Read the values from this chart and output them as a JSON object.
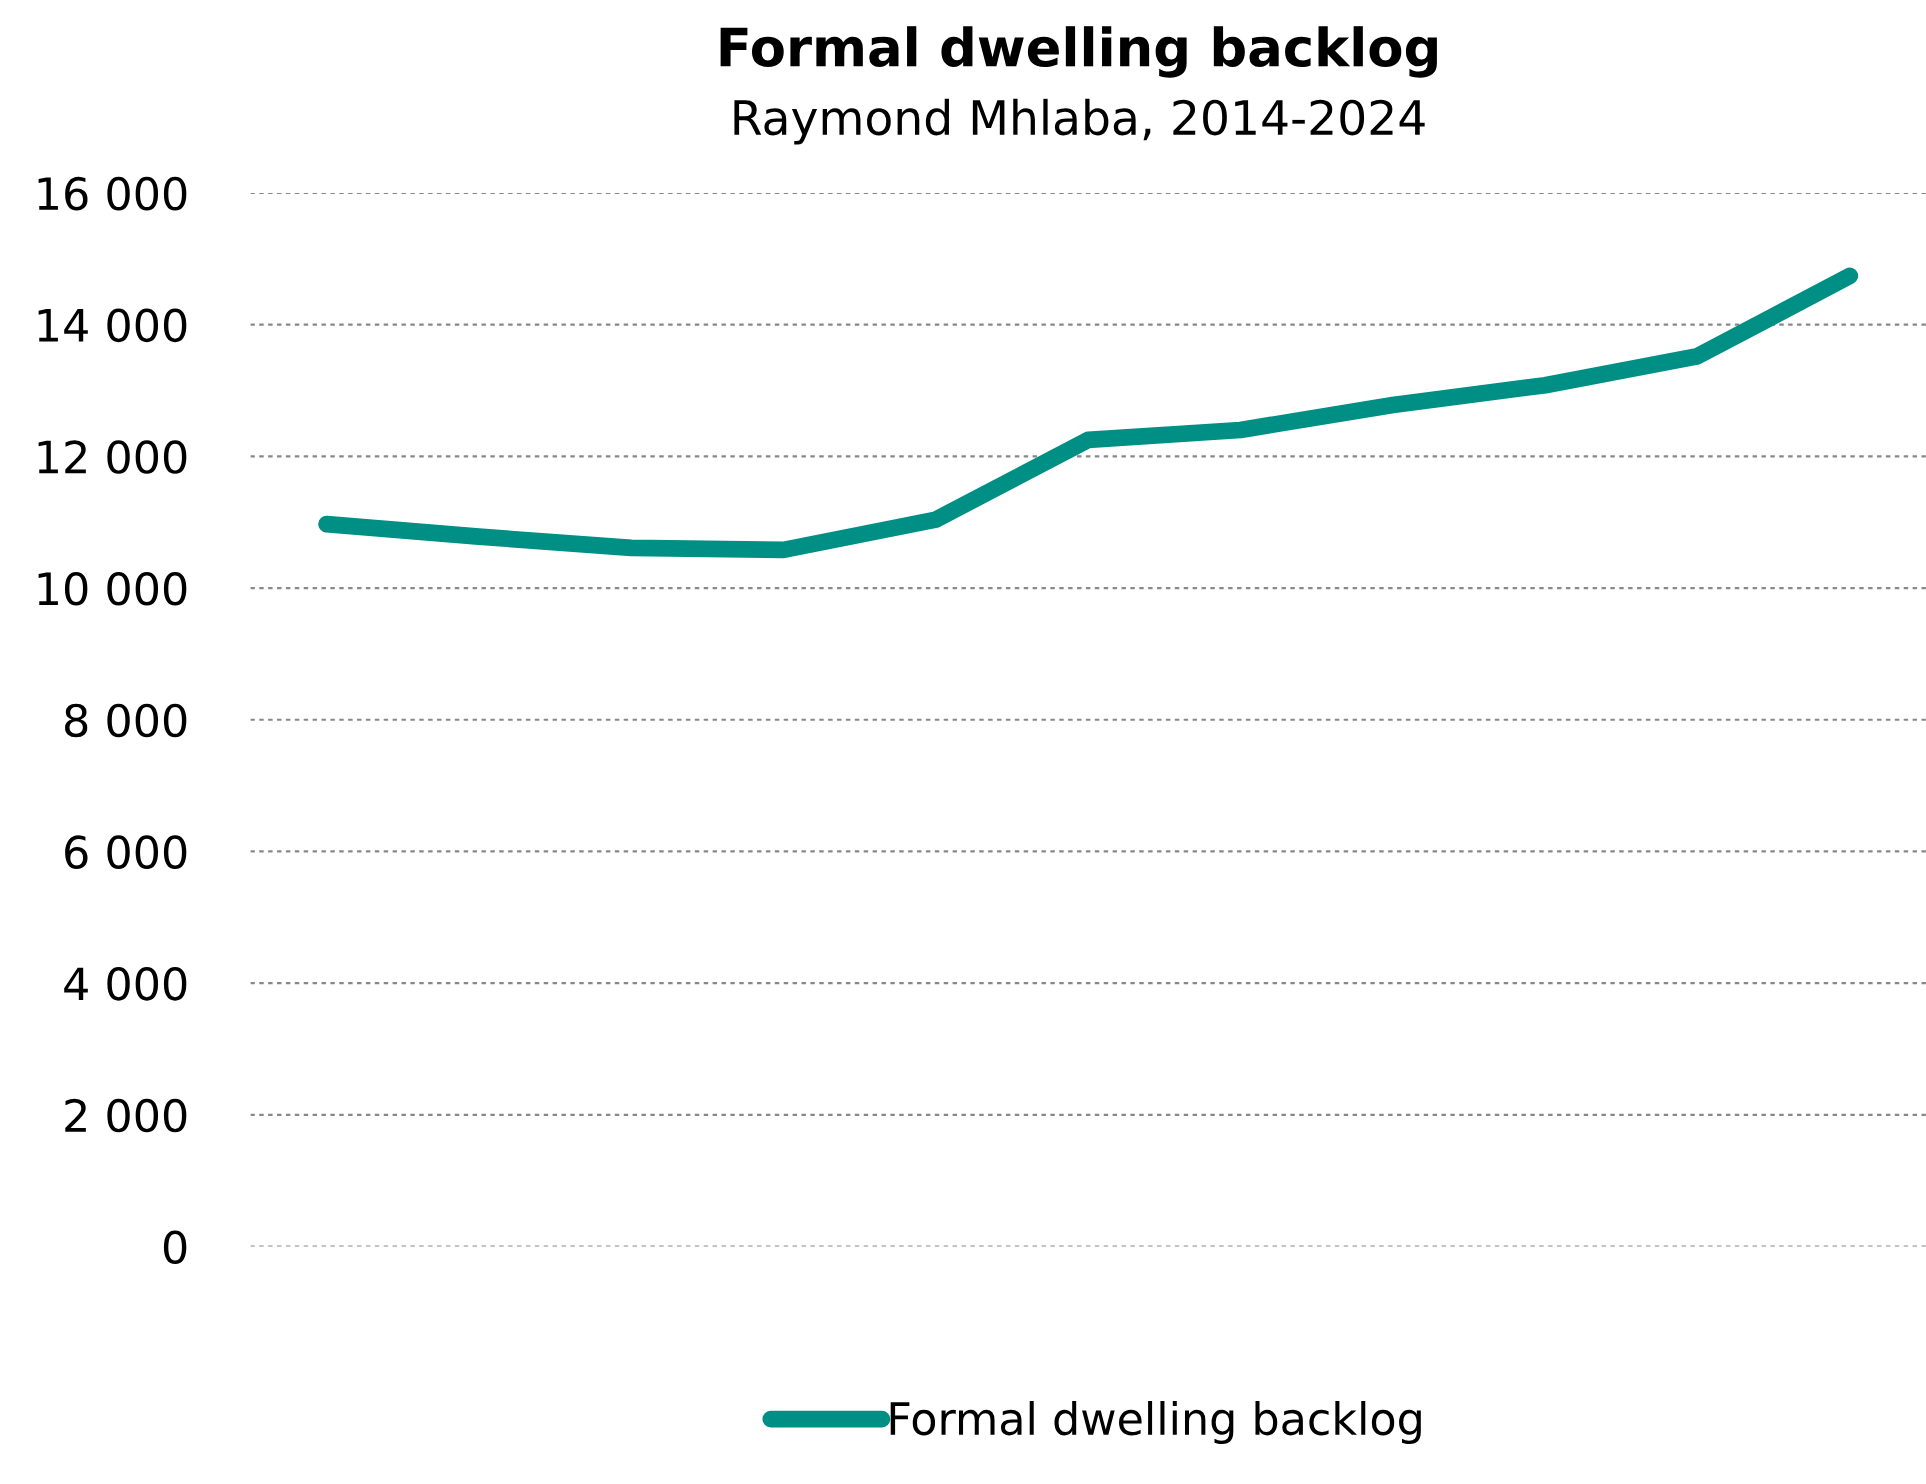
{
  "chart_data": {
    "type": "line",
    "title": "Formal dwelling backlog",
    "subtitle": "Raymond Mhlaba, 2014-2024",
    "categories": [
      null,
      null,
      null,
      null,
      null,
      null,
      null,
      null,
      null,
      null,
      null
    ],
    "series": [
      {
        "name": "Formal dwelling backlog",
        "color": "#008f84",
        "values": [
          10970,
          10780,
          10610,
          10580,
          11040,
          12250,
          12400,
          12780,
          13080,
          13520,
          14740
        ]
      }
    ],
    "ylim": [
      0,
      16000
    ],
    "yticks": [
      {
        "value": 0,
        "label": "0"
      },
      {
        "value": 2000,
        "label": "2 000"
      },
      {
        "value": 4000,
        "label": "4 000"
      },
      {
        "value": 6000,
        "label": "6 000"
      },
      {
        "value": 8000,
        "label": "8 000"
      },
      {
        "value": 10000,
        "label": "10 000"
      },
      {
        "value": 12000,
        "label": "12 000"
      },
      {
        "value": 14000,
        "label": "14 000"
      },
      {
        "value": 16000,
        "label": "16 000"
      }
    ],
    "grid": "y",
    "legend": "bottom",
    "marker": "none",
    "line_style": "solid"
  }
}
